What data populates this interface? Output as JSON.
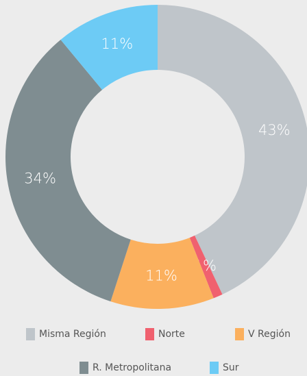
{
  "chart_data": {
    "type": "donut",
    "categories": [
      "Misma Región",
      "Norte",
      "V Región",
      "R. Metropolitana",
      "Sur"
    ],
    "values": [
      43,
      1,
      11,
      34,
      11
    ],
    "value_labels": [
      "43%",
      "1%",
      "11%",
      "34%",
      "11%"
    ],
    "colors": [
      "#bfc5ca",
      "#f0616f",
      "#fbb05e",
      "#7f8d91",
      "#6dcbf5"
    ]
  }
}
